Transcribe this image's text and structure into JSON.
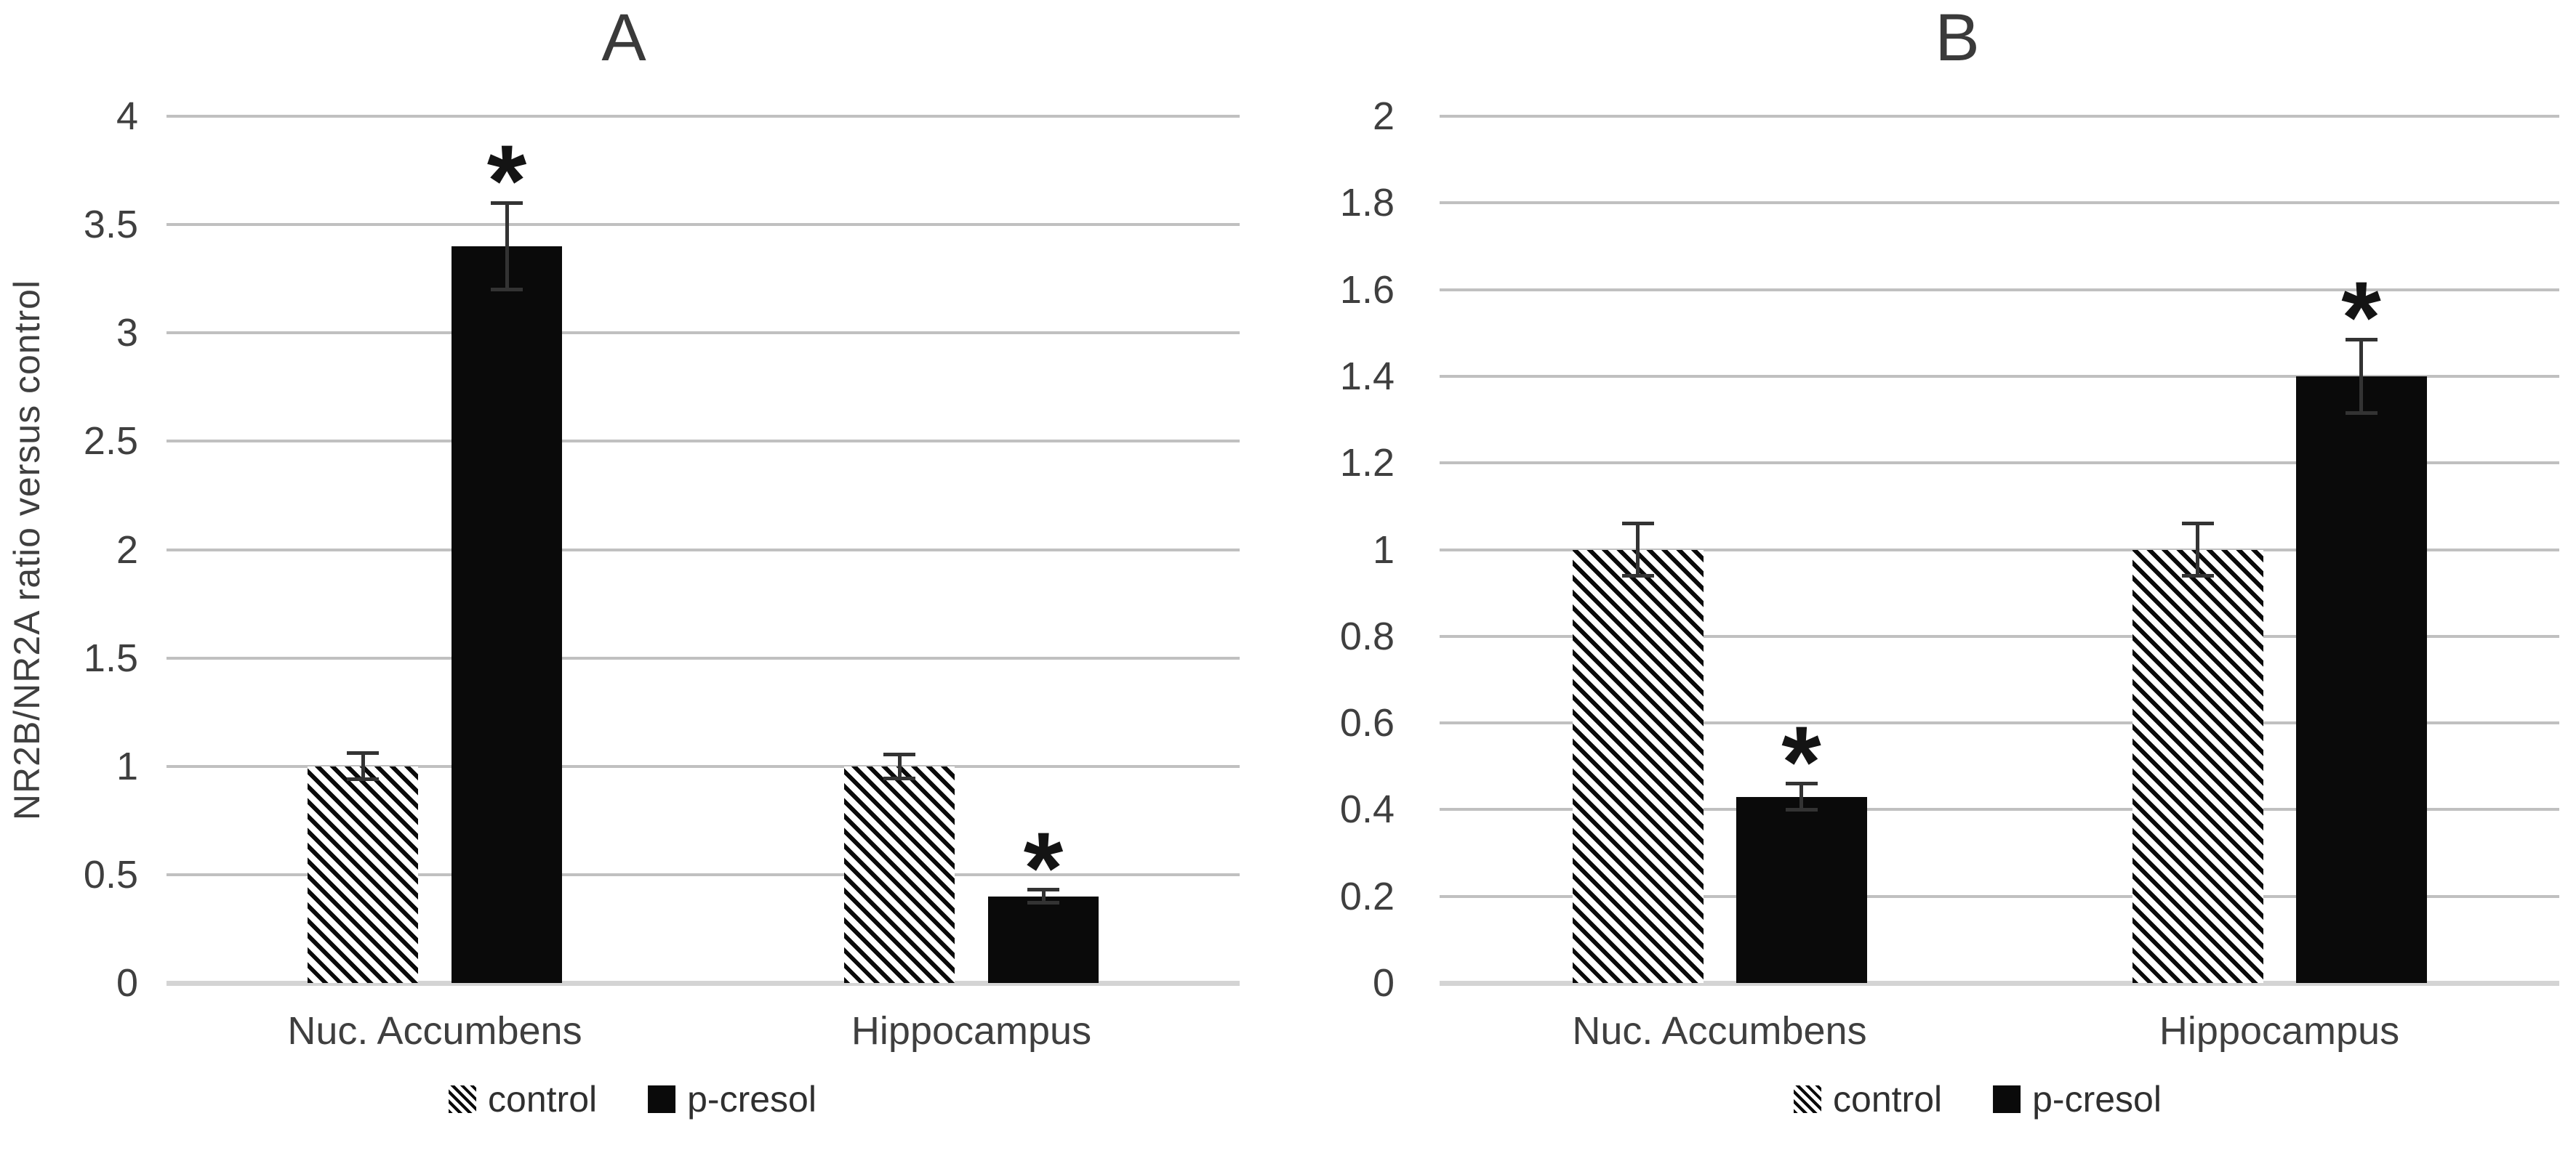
{
  "chart_data": [
    {
      "type": "bar",
      "panel_label": "A",
      "title": "A",
      "ylabel": "NR2B/NR2A ratio versus control",
      "ylim": [
        0,
        4
      ],
      "ytick_step": 0.5,
      "yticks": [
        "0",
        "0.5",
        "1",
        "1.5",
        "2",
        "2.5",
        "3",
        "3.5",
        "4"
      ],
      "categories": [
        "Nuc. Accumbens",
        "Hippocampus"
      ],
      "series": [
        {
          "name": "control",
          "fill": "diagonal-hatch",
          "values": [
            1.0,
            1.0
          ],
          "errors": [
            0.06,
            0.055
          ],
          "significant": [
            false,
            false
          ]
        },
        {
          "name": "p-cresol",
          "fill": "solid-black",
          "values": [
            3.4,
            0.4
          ],
          "errors": [
            0.2,
            0.03
          ],
          "significant": [
            true,
            true
          ]
        }
      ],
      "significance_marker": "*",
      "grid": true,
      "legend_position": "bottom"
    },
    {
      "type": "bar",
      "panel_label": "B",
      "title": "B",
      "ylabel": "",
      "ylim": [
        0,
        2
      ],
      "ytick_step": 0.2,
      "yticks": [
        "0",
        "0.2",
        "0.4",
        "0.6",
        "0.8",
        "1",
        "1.2",
        "1.4",
        "1.6",
        "1.8",
        "2"
      ],
      "categories": [
        "Nuc. Accumbens",
        "Hippocampus"
      ],
      "series": [
        {
          "name": "control",
          "fill": "diagonal-hatch",
          "values": [
            1.0,
            1.0
          ],
          "errors": [
            0.06,
            0.06
          ],
          "significant": [
            false,
            false
          ]
        },
        {
          "name": "p-cresol",
          "fill": "solid-black",
          "values": [
            0.43,
            1.4
          ],
          "errors": [
            0.03,
            0.085
          ],
          "significant": [
            true,
            true
          ]
        }
      ],
      "significance_marker": "*",
      "grid": true,
      "legend_position": "bottom"
    }
  ],
  "colors": {
    "bar_fill": "#0a0a0a",
    "gridline": "#c0c0c0",
    "axis_line": "#d4d4d4",
    "text": "#3f3f3f"
  }
}
